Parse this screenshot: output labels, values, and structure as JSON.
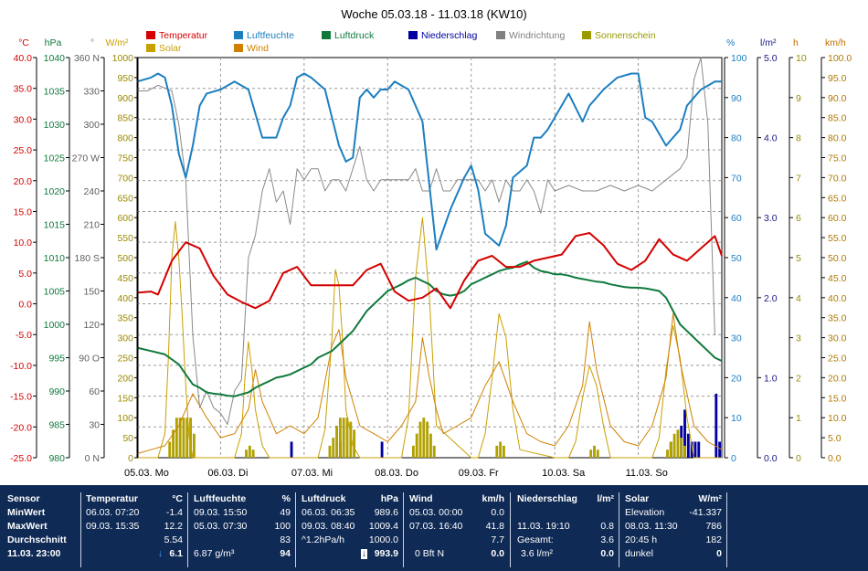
{
  "title": "Woche 05.03.18 - 11.03.18 (KW10)",
  "legend": [
    {
      "label": "Temperatur",
      "color": "#d40000"
    },
    {
      "label": "Luftfeuchte",
      "color": "#1c7fc0"
    },
    {
      "label": "Luftdruck",
      "color": "#0f7a3c"
    },
    {
      "label": "Niederschlag",
      "color": "#0000a0"
    },
    {
      "label": "Windrichtung",
      "color": "#808080"
    },
    {
      "label": "Sonnenschein",
      "color": "#9a9a00"
    },
    {
      "label": "Solar",
      "color": "#c8a000"
    },
    {
      "label": "Wind",
      "color": "#d08000"
    }
  ],
  "chart_data": {
    "type": "line",
    "x_range": [
      "05.03.18 00:00",
      "12.03.18 00:00"
    ],
    "x_ticks": [
      "05.03.  Mo",
      "06.03.  Di",
      "07.03.  Mi",
      "08.03.  Do",
      "09.03.  Fr",
      "10.03.  Sa",
      "11.03.  So"
    ],
    "axes": [
      {
        "unit": "°C",
        "range": [
          -25,
          40
        ],
        "ticks": [
          "40.0",
          "35.0",
          "30.0",
          "25.0",
          "20.0",
          "15.0",
          "10.0",
          "5.0",
          "0.0",
          "-5.0",
          "-10.0",
          "-15.0",
          "-20.0",
          "-25.0"
        ]
      },
      {
        "unit": "hPa",
        "range": [
          980,
          1040
        ],
        "ticks": [
          "1040",
          "1035",
          "1030",
          "1025",
          "1020",
          "1015",
          "1010",
          "1005",
          "1000",
          "995",
          "990",
          "985",
          "980"
        ]
      },
      {
        "unit": "°",
        "range": [
          0,
          360
        ],
        "ticks": [
          "360 N",
          "330",
          "300",
          "270 W",
          "240",
          "210",
          "180 S",
          "150",
          "120",
          "90 O",
          "60",
          "30",
          "0 N"
        ]
      },
      {
        "unit": "W/m²",
        "range": [
          0,
          1000
        ],
        "ticks": [
          "1000",
          "950",
          "900",
          "850",
          "800",
          "750",
          "700",
          "650",
          "600",
          "550",
          "500",
          "450",
          "400",
          "350",
          "300",
          "250",
          "200",
          "150",
          "100",
          "50",
          "0"
        ]
      },
      {
        "unit": "%",
        "range": [
          0,
          100
        ],
        "ticks": [
          "100",
          "90",
          "80",
          "70",
          "60",
          "50",
          "40",
          "30",
          "20",
          "10",
          "0"
        ]
      },
      {
        "unit": "l/m²",
        "range": [
          0,
          5
        ],
        "ticks": [
          "5.0",
          "4.0",
          "3.0",
          "2.0",
          "1.0",
          "0.0"
        ]
      },
      {
        "unit": "h",
        "range": [
          0,
          10
        ],
        "ticks": [
          "10",
          "9",
          "8",
          "7",
          "6",
          "5",
          "4",
          "3",
          "2",
          "1",
          "0"
        ]
      },
      {
        "unit": "km/h",
        "range": [
          0,
          100
        ],
        "ticks": [
          "100.0",
          "95.0",
          "90.0",
          "85.0",
          "80.0",
          "75.0",
          "70.0",
          "65.0",
          "60.0",
          "55.0",
          "50.0",
          "45.0",
          "40.0",
          "35.0",
          "30.0",
          "25.0",
          "20.0",
          "15.0",
          "10.0",
          "5.0",
          "0.0"
        ]
      }
    ],
    "grid": true,
    "series": [
      {
        "name": "Temperatur",
        "unit": "°C",
        "x_hours": [
          0,
          4,
          6,
          10,
          14,
          18,
          22,
          26,
          30,
          34,
          38,
          42,
          46,
          50,
          54,
          58,
          62,
          66,
          70,
          74,
          78,
          82,
          86,
          90,
          94,
          98,
          102,
          106,
          110,
          114,
          118,
          122,
          126,
          130,
          134,
          138,
          142,
          146,
          150,
          154,
          158,
          162,
          166,
          168
        ],
        "values": [
          1.8,
          2.0,
          1.5,
          7,
          10,
          9,
          4.5,
          1.5,
          0.3,
          -0.7,
          0.5,
          5,
          6,
          3,
          3,
          3,
          3,
          5.5,
          6.5,
          2,
          0.5,
          1,
          2.5,
          -0.7,
          3.8,
          7,
          7.8,
          6,
          6,
          7,
          7.5,
          8,
          11,
          11.5,
          9.5,
          6.5,
          5.5,
          7,
          10.5,
          8,
          7,
          9,
          11,
          7.8
        ]
      },
      {
        "name": "Luftfeuchte",
        "unit": "%",
        "x_hours": [
          0,
          4,
          6,
          8,
          10,
          12,
          14,
          16,
          18,
          20,
          24,
          28,
          32,
          36,
          40,
          42,
          44,
          46,
          48,
          50,
          54,
          58,
          60,
          62,
          64,
          66,
          68,
          70,
          72,
          74,
          78,
          82,
          86,
          90,
          94,
          96,
          98,
          100,
          104,
          106,
          108,
          112,
          114,
          116,
          118,
          120,
          124,
          128,
          130,
          132,
          134,
          138,
          142,
          144,
          146,
          148,
          152,
          156,
          158,
          160,
          162,
          164,
          166,
          168
        ],
        "values": [
          94,
          95,
          96,
          95,
          88,
          76,
          70,
          78,
          88,
          91,
          92,
          94,
          92,
          80,
          80,
          85,
          88,
          95,
          96,
          95,
          92,
          78,
          74,
          75,
          90,
          92,
          90,
          92,
          92,
          94,
          92,
          84,
          52,
          62,
          70,
          73,
          67,
          56,
          53,
          58,
          70,
          73,
          80,
          80,
          82,
          85,
          91,
          84,
          88,
          90,
          92,
          95,
          96,
          96,
          85,
          84,
          78,
          82,
          88,
          90,
          92,
          93,
          94,
          94
        ]
      },
      {
        "name": "Luftdruck",
        "unit": "hPa",
        "x_hours": [
          0,
          4,
          8,
          12,
          14,
          16,
          18,
          20,
          22,
          24,
          26,
          28,
          30,
          32,
          34,
          36,
          38,
          40,
          42,
          44,
          46,
          48,
          50,
          52,
          54,
          56,
          58,
          60,
          62,
          64,
          66,
          68,
          70,
          72,
          74,
          76,
          78,
          80,
          82,
          84,
          86,
          88,
          90,
          92,
          94,
          96,
          98,
          100,
          102,
          104,
          106,
          108,
          110,
          112,
          114,
          116,
          118,
          120,
          122,
          124,
          126,
          128,
          130,
          132,
          134,
          136,
          138,
          140,
          142,
          144,
          146,
          148,
          150,
          152,
          154,
          156,
          158,
          160,
          162,
          164,
          166,
          168
        ],
        "values": [
          996.5,
          996,
          995.5,
          994,
          992.5,
          991,
          990.5,
          989.8,
          989.6,
          989.5,
          989.3,
          989.2,
          989.5,
          989.8,
          990.5,
          991,
          991.5,
          992,
          992.2,
          992.5,
          993,
          993.5,
          994,
          995,
          995.5,
          996,
          997,
          998,
          999,
          1000.5,
          1002,
          1003,
          1004,
          1005,
          1005.5,
          1006,
          1006.6,
          1007,
          1006.5,
          1006,
          1005,
          1004.5,
          1004.3,
          1004.5,
          1005,
          1006,
          1006.5,
          1007,
          1007.5,
          1008,
          1008.3,
          1008.5,
          1009,
          1009.4,
          1008.5,
          1008,
          1007.8,
          1007.5,
          1007.5,
          1007.3,
          1007,
          1006.8,
          1006.6,
          1006.4,
          1006.3,
          1006,
          1005.8,
          1005.6,
          1005.5,
          1005.5,
          1005.4,
          1005.2,
          1005,
          1004,
          1002,
          1000,
          999,
          998,
          997,
          996,
          995,
          994.5
        ]
      },
      {
        "name": "Windrichtung",
        "unit": "°",
        "x_hours": [
          0,
          3,
          6,
          10,
          12,
          14,
          16,
          18,
          20,
          22,
          24,
          26,
          28,
          30,
          32,
          34,
          36,
          38,
          40,
          42,
          44,
          46,
          48,
          50,
          52,
          54,
          56,
          58,
          60,
          62,
          64,
          66,
          68,
          70,
          72,
          74,
          76,
          78,
          80,
          82,
          84,
          86,
          88,
          90,
          92,
          94,
          96,
          98,
          100,
          102,
          104,
          106,
          108,
          110,
          112,
          114,
          116,
          118,
          120,
          124,
          128,
          132,
          136,
          140,
          144,
          148,
          152,
          156,
          158,
          160,
          162,
          164,
          166
        ],
        "values": [
          330,
          330,
          335,
          330,
          300,
          250,
          110,
          45,
          60,
          45,
          40,
          30,
          60,
          70,
          180,
          200,
          240,
          260,
          230,
          240,
          210,
          260,
          250,
          260,
          260,
          240,
          250,
          250,
          240,
          260,
          280,
          250,
          240,
          250,
          250,
          250,
          250,
          250,
          260,
          240,
          240,
          260,
          240,
          240,
          250,
          250,
          250,
          250,
          240,
          250,
          230,
          250,
          240,
          240,
          250,
          240,
          220,
          250,
          240,
          245,
          240,
          240,
          245,
          240,
          245,
          240,
          250,
          260,
          270,
          340,
          360,
          300,
          110
        ]
      },
      {
        "name": "Solar",
        "unit": "W/m²",
        "x_hours": [
          0,
          4,
          6,
          8,
          9,
          10,
          11,
          12,
          13,
          14,
          15,
          16,
          24,
          28,
          30,
          31,
          32,
          33,
          34,
          36,
          38,
          40,
          48,
          52,
          54,
          56,
          57,
          58,
          59,
          60,
          62,
          64,
          72,
          76,
          78,
          80,
          82,
          84,
          86,
          96,
          98,
          100,
          102,
          104,
          106,
          108,
          110,
          120,
          124,
          126,
          128,
          130,
          132,
          134,
          136,
          144,
          148,
          150,
          152,
          154,
          156,
          158,
          160,
          168
        ],
        "values": [
          0,
          0,
          0,
          60,
          250,
          500,
          590,
          500,
          350,
          180,
          50,
          0,
          0,
          0,
          60,
          200,
          290,
          220,
          120,
          30,
          0,
          0,
          0,
          0,
          70,
          300,
          470,
          430,
          300,
          120,
          30,
          0,
          0,
          0,
          100,
          450,
          600,
          400,
          80,
          0,
          0,
          60,
          200,
          360,
          300,
          120,
          20,
          0,
          0,
          40,
          150,
          230,
          180,
          80,
          0,
          0,
          0,
          50,
          220,
          330,
          250,
          100,
          0,
          0
        ]
      },
      {
        "name": "Wind",
        "unit": "km/h",
        "x_hours": [
          0,
          4,
          8,
          12,
          16,
          20,
          24,
          28,
          32,
          34,
          36,
          40,
          44,
          48,
          52,
          56,
          58,
          60,
          64,
          68,
          72,
          76,
          80,
          82,
          84,
          86,
          88,
          92,
          96,
          100,
          104,
          108,
          112,
          116,
          120,
          124,
          128,
          130,
          132,
          136,
          140,
          144,
          148,
          152,
          154,
          156,
          160,
          164,
          168
        ],
        "values": [
          1,
          2,
          3,
          8,
          16,
          10,
          5,
          6,
          12,
          22,
          14,
          6,
          8,
          6,
          10,
          28,
          32,
          20,
          8,
          6,
          4,
          8,
          14,
          30,
          20,
          12,
          6,
          8,
          10,
          18,
          24,
          14,
          6,
          4,
          3,
          8,
          18,
          34,
          22,
          8,
          4,
          3,
          8,
          20,
          36,
          24,
          8,
          4,
          2
        ]
      }
    ],
    "bars": [
      {
        "name": "Niederschlag",
        "unit": "l/m²",
        "x_hours": [
          44,
          58,
          70,
          153,
          156,
          157,
          158,
          159,
          160,
          161,
          166,
          167
        ],
        "values": [
          0.2,
          0.2,
          0.2,
          0.2,
          0.4,
          0.6,
          0.3,
          0.2,
          0.2,
          0.2,
          0.8,
          0.2
        ]
      },
      {
        "name": "Sonnenschein",
        "unit": "h",
        "x_hours": [
          9,
          10,
          11,
          12,
          13,
          14,
          15,
          16,
          31,
          32,
          33,
          55,
          56,
          57,
          58,
          59,
          60,
          61,
          62,
          79,
          80,
          81,
          82,
          83,
          84,
          85,
          103,
          104,
          105,
          130,
          131,
          132,
          152,
          153,
          154,
          155,
          156,
          157
        ],
        "values": [
          0.4,
          0.7,
          1,
          1,
          1,
          1,
          1,
          0.6,
          0.2,
          0.3,
          0.2,
          0.3,
          0.5,
          0.8,
          1,
          1,
          1,
          0.9,
          0.7,
          0.3,
          0.6,
          0.9,
          1,
          0.9,
          0.6,
          0.3,
          0.3,
          0.4,
          0.3,
          0.2,
          0.3,
          0.2,
          0.2,
          0.4,
          0.6,
          0.7,
          0.5,
          0.3
        ]
      }
    ]
  },
  "footer": {
    "sensor": {
      "header": "Sensor",
      "min": "MinWert",
      "max": "MaxWert",
      "avg": "Durchschnitt",
      "time": "11.03. 23:00"
    },
    "temperatur": {
      "header": "Temperatur",
      "unit": "°C",
      "min_time": "06.03.  07:20",
      "min_val": "-1.4",
      "max_time": "09.03.  15:35",
      "max_val": "12.2",
      "avg": "5.54",
      "current": "6.1"
    },
    "luftfeuchte": {
      "header": "Luftfeuchte",
      "unit": "%",
      "min_time": "09.03.  15:50",
      "min_val": "49",
      "max_time": "05.03.  07:30",
      "max_val": "100",
      "avg": "83",
      "abs": "6.87 g/m³",
      "current": "94"
    },
    "luftdruck": {
      "header": "Luftdruck",
      "unit": "hPa",
      "min_time": "06.03.  06:35",
      "min_val": "989.6",
      "max_time": "09.03.  08:40",
      "max_val": "1009.4",
      "trend": "^1.2hPa/h",
      "avg": "1000.0",
      "current": "993.9"
    },
    "wind": {
      "header": "Wind",
      "unit": "km/h",
      "min_time": "05.03.  00:00",
      "min_val": "0.0",
      "max_time": "07.03.  16:40",
      "max_val": "41.8",
      "avg": "7.7",
      "bft": "0 Bft N",
      "current": "0.0"
    },
    "niederschlag": {
      "header": "Niederschlag",
      "unit": "l/m²",
      "max_time": "11.03.  19:10",
      "max_val": "0.8",
      "total_label": "Gesamt:",
      "total_val": "3.6",
      "rate": "3.6 l/m²",
      "current": "0.0"
    },
    "solar": {
      "header": "Solar",
      "unit": "W/m²",
      "elev_label": "Elevation",
      "elev_val": "-41.337",
      "max_time": "08.03.  11:30",
      "max_val": "786",
      "sun_time": "20:45 h",
      "sun_val": "182",
      "state": "dunkel",
      "current": "0"
    }
  }
}
